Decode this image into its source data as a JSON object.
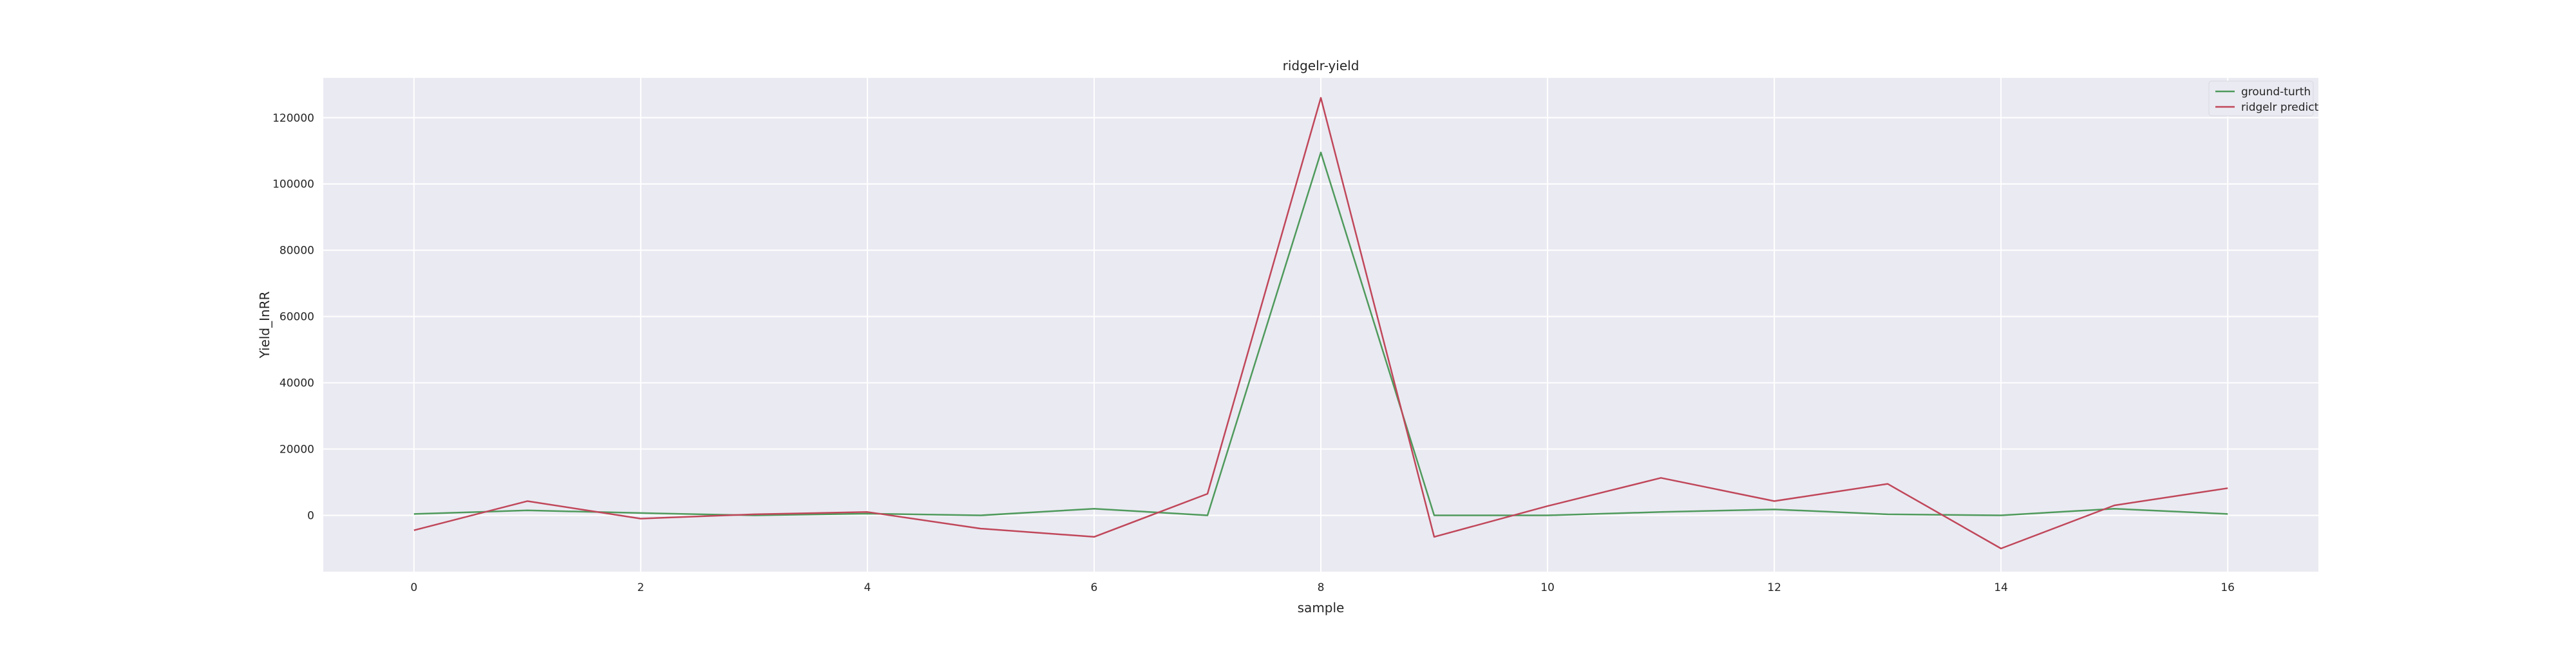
{
  "chart_data": {
    "type": "line",
    "title": "ridgelr-yield",
    "xlabel": "sample",
    "ylabel": "Yield_InRR",
    "xlim": [
      -0.8,
      16.8
    ],
    "ylim": [
      -17000,
      132000
    ],
    "x_ticks": [
      0,
      2,
      4,
      6,
      8,
      10,
      12,
      14,
      16
    ],
    "y_ticks": [
      0,
      20000,
      40000,
      60000,
      80000,
      100000,
      120000
    ],
    "grid": true,
    "legend_position": "top-right",
    "x": [
      0,
      1,
      2,
      3,
      4,
      5,
      6,
      7,
      8,
      9,
      10,
      11,
      12,
      13,
      14,
      15,
      16
    ],
    "series": [
      {
        "name": "ground-turth",
        "color": "#4f9a5c",
        "values": [
          400,
          1500,
          700,
          0,
          500,
          0,
          2000,
          0,
          109500,
          0,
          0,
          1000,
          1800,
          300,
          0,
          2000,
          400
        ]
      },
      {
        "name": "ridgelr predict",
        "color": "#c0475a",
        "values": [
          -4500,
          4300,
          -1000,
          300,
          1000,
          -4000,
          -6500,
          6500,
          126000,
          -6500,
          2800,
          11300,
          4300,
          9500,
          -10000,
          3000,
          8200
        ]
      }
    ]
  },
  "colors": {
    "plot_background": "#eaeaf2",
    "grid": "#ffffff",
    "text": "#262626"
  }
}
